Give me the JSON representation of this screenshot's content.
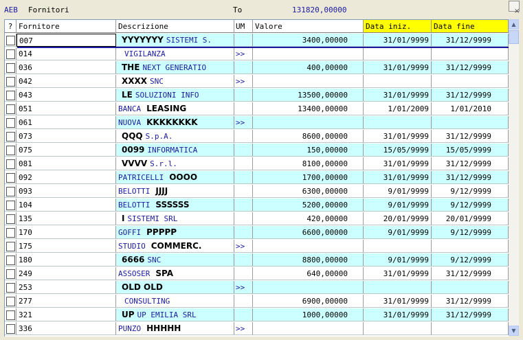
{
  "header": {
    "code": "AEB",
    "name": "Fornitori",
    "to_label": "To",
    "total": "131820,00000",
    "close_glyph": "×"
  },
  "columns": {
    "check": "?",
    "fornitore": "Fornitore",
    "descrizione": "Descrizione",
    "um": "UM",
    "valore": "Valore",
    "data_iniz": "Data iniz.",
    "data_fine": "Data fine"
  },
  "rows": [
    {
      "code": "007",
      "desc_bold": "YYYYYYY",
      "desc": "SISTEMI S.",
      "um": "",
      "valore": "3400,00000",
      "di": "31/01/9999",
      "df": "31/12/9999"
    },
    {
      "code": "014",
      "desc_bold": "",
      "desc": "VIGILANZA",
      "um": ">>",
      "valore": "",
      "di": "",
      "df": ""
    },
    {
      "code": "036",
      "desc_bold": "THE",
      "desc": "NEXT GENERATIO",
      "um": "",
      "valore": "400,00000",
      "di": "31/01/9999",
      "df": "31/12/9999"
    },
    {
      "code": "042",
      "desc_bold": "XXXX",
      "desc": "SNC",
      "um": ">>",
      "valore": "",
      "di": "",
      "df": ""
    },
    {
      "code": "043",
      "desc_bold": "LE",
      "desc": "SOLUZIONI INFO",
      "um": "",
      "valore": "13500,00000",
      "di": "31/01/9999",
      "df": "31/12/9999"
    },
    {
      "code": "051",
      "desc_bold": "LEASING",
      "desc": "BANCA",
      "um": "",
      "valore": "13400,00000",
      "di": "1/01/2009",
      "df": "1/01/2010"
    },
    {
      "code": "061",
      "desc_bold": "KKKKKKKK",
      "desc": "NUOVA",
      "um": ">>",
      "valore": "",
      "di": "",
      "df": ""
    },
    {
      "code": "073",
      "desc_bold": "QQQ",
      "desc": "S.p.A.",
      "um": "",
      "valore": "8600,00000",
      "di": "31/01/9999",
      "df": "31/12/9999"
    },
    {
      "code": "075",
      "desc_bold": "0099",
      "desc": "INFORMATICA",
      "um": "",
      "valore": "150,00000",
      "di": "15/05/9999",
      "df": "15/05/9999"
    },
    {
      "code": "081",
      "desc_bold": "VVVV",
      "desc": "S.r.l.",
      "um": "",
      "valore": "8100,00000",
      "di": "31/01/9999",
      "df": "31/12/9999"
    },
    {
      "code": "092",
      "desc_bold": "OOOO",
      "desc": "PATRICELLI",
      "um": "",
      "valore": "1700,00000",
      "di": "31/01/9999",
      "df": "31/12/9999"
    },
    {
      "code": "093",
      "desc_bold": "JJJJ",
      "desc": "BELOTTI",
      "um": "",
      "valore": "6300,00000",
      "di": "9/01/9999",
      "df": "9/12/9999"
    },
    {
      "code": "104",
      "desc_bold": "SSSSSS",
      "desc": "BELOTTI",
      "um": "",
      "valore": "5200,00000",
      "di": "9/01/9999",
      "df": "9/12/9999"
    },
    {
      "code": "135",
      "desc_bold": "I",
      "desc": "SISTEMI SRL",
      "um": "",
      "valore": "420,00000",
      "di": "20/01/9999",
      "df": "20/01/9999"
    },
    {
      "code": "170",
      "desc_bold": "PPPPP",
      "desc": "GOFFI",
      "um": "",
      "valore": "6600,00000",
      "di": "9/01/9999",
      "df": "9/12/9999"
    },
    {
      "code": "175",
      "desc_bold": "COMMERC.",
      "desc": "STUDIO",
      "um": ">>",
      "valore": "",
      "di": "",
      "df": ""
    },
    {
      "code": "180",
      "desc_bold": "6666",
      "desc": "SNC",
      "um": "",
      "valore": "8800,00000",
      "di": "9/01/9999",
      "df": "9/12/9999"
    },
    {
      "code": "249",
      "desc_bold": "SPA",
      "desc": "ASSOSER",
      "um": "",
      "valore": "640,00000",
      "di": "31/01/9999",
      "df": "31/12/9999"
    },
    {
      "code": "253",
      "desc_bold": "OLD OLD",
      "desc": "",
      "um": ">>",
      "valore": "",
      "di": "",
      "df": ""
    },
    {
      "code": "277",
      "desc_bold": "",
      "desc": "CONSULTING",
      "um": "",
      "valore": "6900,00000",
      "di": "31/01/9999",
      "df": "31/12/9999"
    },
    {
      "code": "321",
      "desc_bold": "UP",
      "desc": "UP EMILIA SRL",
      "um": "",
      "valore": "1000,00000",
      "di": "31/01/9999",
      "df": "31/12/9999"
    },
    {
      "code": "336",
      "desc_bold": "HHHHH",
      "desc": "PUNZO",
      "um": ">>",
      "valore": "",
      "di": "",
      "df": ""
    }
  ],
  "scrollbar": {
    "up_glyph": "▲",
    "down_glyph": "▼"
  }
}
